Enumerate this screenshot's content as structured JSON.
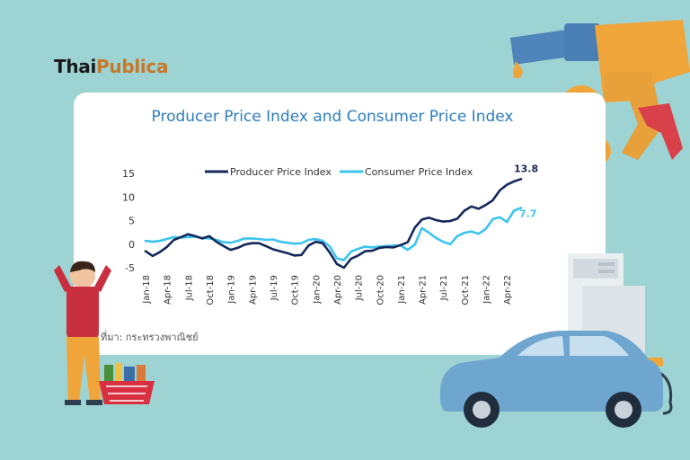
{
  "brand": {
    "part1": "Thai",
    "part2": "Publica"
  },
  "source": "ที่มา: กระทรวงพาณิชย์",
  "colors": {
    "ppi": "#14285a",
    "cpi": "#3cc4ef",
    "title": "#2e7dbf",
    "background": "#9dd3d3"
  },
  "icons": [
    "fuel-nozzle-icon",
    "baht-coin-icon",
    "fuel-pump-icon",
    "car-icon",
    "worried-person-icon",
    "shopping-basket-icon"
  ],
  "chart_data": {
    "type": "line",
    "title": "Producer Price Index and Consumer Price Index",
    "xlabel": "",
    "ylabel": "",
    "ylim": [
      -5,
      15
    ],
    "yticks": [
      15,
      10,
      5,
      0,
      -5
    ],
    "grid": false,
    "legend_position": "top",
    "x": [
      "Jan-18",
      "Feb-18",
      "Mar-18",
      "Apr-18",
      "May-18",
      "Jun-18",
      "Jul-18",
      "Aug-18",
      "Sep-18",
      "Oct-18",
      "Nov-18",
      "Dec-18",
      "Jan-19",
      "Feb-19",
      "Mar-19",
      "Apr-19",
      "May-19",
      "Jun-19",
      "Jul-19",
      "Aug-19",
      "Sep-19",
      "Oct-19",
      "Nov-19",
      "Dec-19",
      "Jan-20",
      "Feb-20",
      "Mar-20",
      "Apr-20",
      "May-20",
      "Jun-20",
      "Jul-20",
      "Aug-20",
      "Sep-20",
      "Oct-20",
      "Nov-20",
      "Dec-20",
      "Jan-21",
      "Feb-21",
      "Mar-21",
      "Apr-21",
      "May-21",
      "Jun-21",
      "Jul-21",
      "Aug-21",
      "Sep-21",
      "Oct-21",
      "Nov-21",
      "Dec-21",
      "Jan-22",
      "Feb-22",
      "Mar-22",
      "Apr-22",
      "May-22",
      "Jun-22"
    ],
    "x_tick_labels": [
      "Jan-18",
      "Apr-18",
      "Jul-18",
      "Oct-18",
      "Jan-19",
      "Apr-19",
      "Jul-19",
      "Oct-19",
      "Jan-20",
      "Apr-20",
      "Jul-20",
      "Oct-20",
      "Jan-21",
      "Apr-21",
      "Jul-21",
      "Oct-21",
      "Jan-22",
      "Apr-22"
    ],
    "series": [
      {
        "name": "Producer Price Index",
        "values": [
          -1.5,
          -2.5,
          -1.7,
          -0.6,
          0.9,
          1.5,
          2.1,
          1.7,
          1.2,
          1.7,
          0.5,
          -0.4,
          -1.2,
          -0.8,
          -0.1,
          0.2,
          0.2,
          -0.4,
          -1.1,
          -1.5,
          -1.9,
          -2.4,
          -2.3,
          -0.3,
          0.5,
          0.2,
          -1.8,
          -4.2,
          -5.0,
          -3.1,
          -2.4,
          -1.5,
          -1.4,
          -0.8,
          -0.6,
          -0.7,
          -0.2,
          0.4,
          3.5,
          5.2,
          5.6,
          5.1,
          4.8,
          4.9,
          5.4,
          7.1,
          8.0,
          7.5,
          8.3,
          9.3,
          11.4,
          12.6,
          13.3,
          13.8
        ],
        "end_label": "13.8"
      },
      {
        "name": "Consumer Price Index",
        "values": [
          0.7,
          0.5,
          0.7,
          1.1,
          1.5,
          1.4,
          1.5,
          1.6,
          1.3,
          1.2,
          0.9,
          0.4,
          0.3,
          0.7,
          1.2,
          1.2,
          1.1,
          0.9,
          1.0,
          0.5,
          0.3,
          0.1,
          0.2,
          0.9,
          1.1,
          0.7,
          -0.5,
          -3.0,
          -3.4,
          -1.6,
          -1.0,
          -0.5,
          -0.7,
          -0.5,
          -0.4,
          -0.3,
          -0.3,
          -1.2,
          -0.1,
          3.4,
          2.4,
          1.3,
          0.5,
          0.0,
          1.7,
          2.4,
          2.7,
          2.2,
          3.2,
          5.3,
          5.7,
          4.7,
          7.1,
          7.7
        ],
        "end_label": "7.7"
      }
    ]
  }
}
